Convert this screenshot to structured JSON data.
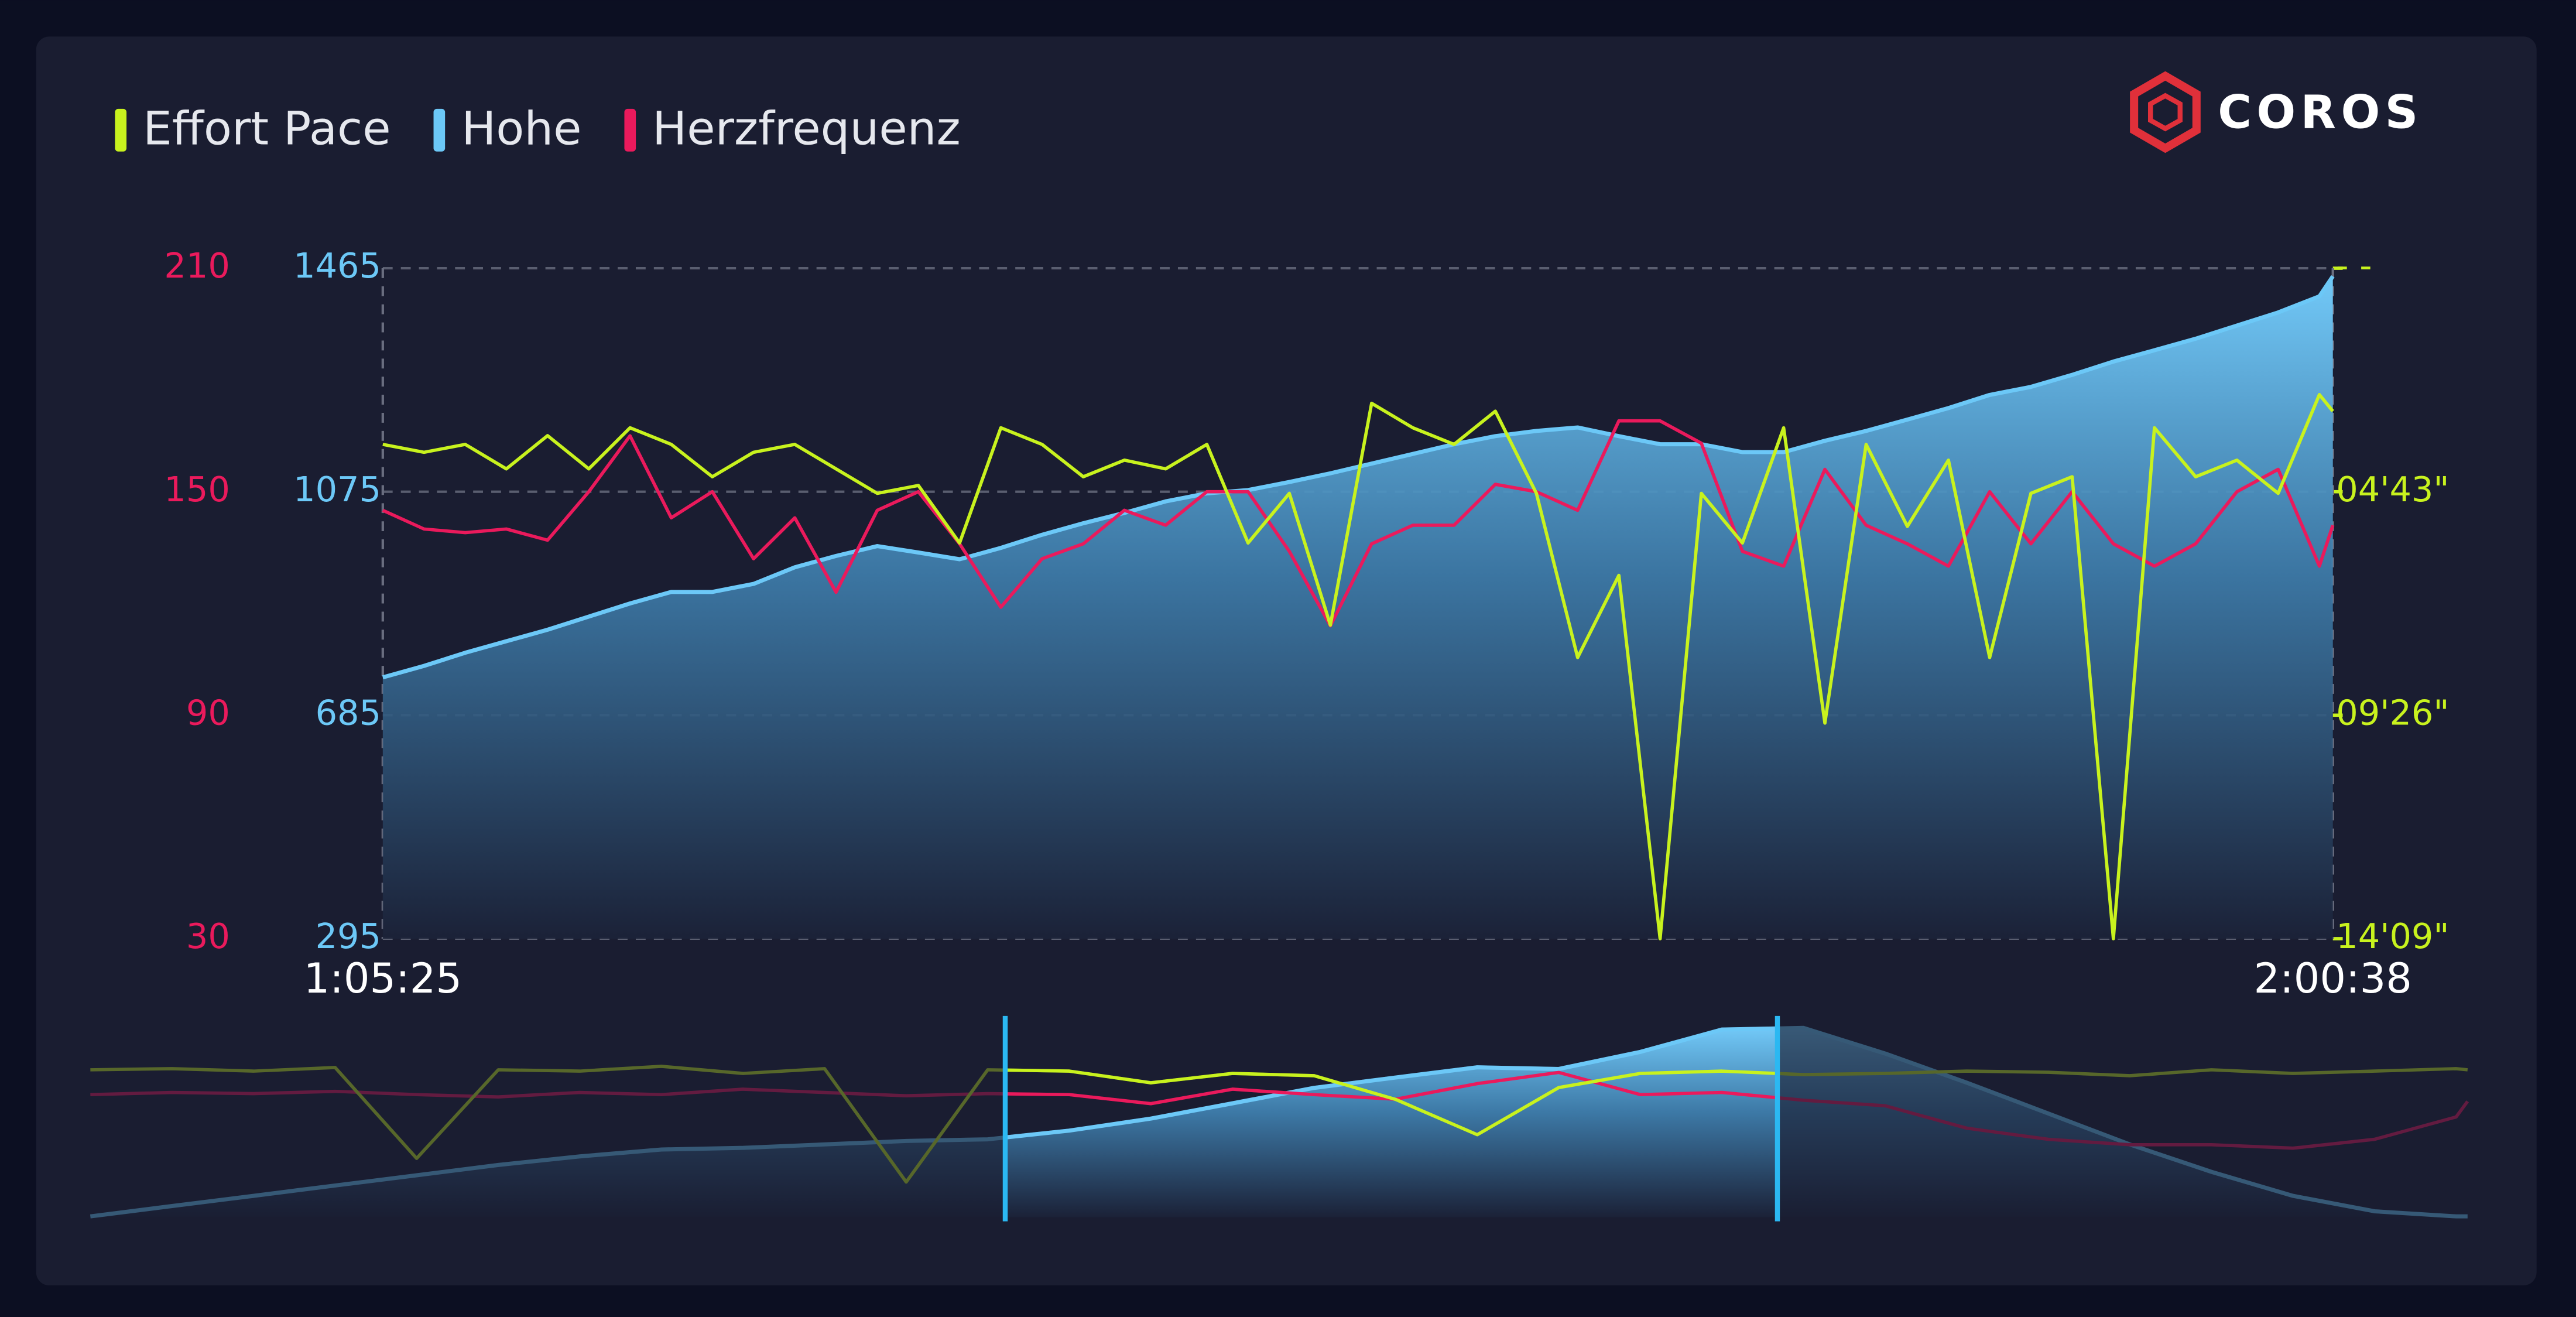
{
  "chart_data": [
    {
      "type": "line",
      "brand": "COROS",
      "x": [
        3925,
        3995,
        4065,
        4135,
        4205,
        4275,
        4345,
        4415,
        4485,
        4555,
        4625,
        4695,
        4765,
        4835,
        4905,
        4975,
        5045,
        5115,
        5185,
        5255,
        5325,
        5395,
        5465,
        5535,
        5605,
        5675,
        5745,
        5815,
        5885,
        5955,
        6025,
        6095,
        6165,
        6235,
        6305,
        6375,
        6445,
        6515,
        6585,
        6655,
        6725,
        6795,
        6865,
        6935,
        7005,
        7075,
        7145,
        7215,
        7238
      ],
      "xlim": [
        3925,
        7238
      ],
      "xticks": [
        {
          "value": 3925,
          "label": "1:05:25"
        },
        {
          "value": 7238,
          "label": "2:00:38"
        }
      ],
      "ylim": [
        295,
        1465
      ],
      "yticks": [
        295,
        685,
        1075,
        1465
      ],
      "y2lim": [
        849,
        0
      ],
      "y2ticks": [
        {
          "value": 0,
          "label": "- -"
        },
        {
          "value": 283,
          "label": "04'43\""
        },
        {
          "value": 566,
          "label": "09'26\""
        },
        {
          "value": 849,
          "label": "14'09\""
        }
      ],
      "y3lim": [
        30,
        210
      ],
      "y3ticks": [
        30,
        90,
        150,
        210
      ],
      "grid": true,
      "series": [
        {
          "name": "Effort Pace",
          "color": "#c8f21e",
          "axis": "y2",
          "values": [
            223,
            233,
            223,
            254,
            212,
            254,
            202,
            223,
            264,
            233,
            223,
            254,
            285,
            275,
            348,
            202,
            223,
            264,
            243,
            254,
            223,
            348,
            285,
            452,
            171,
            202,
            223,
            181,
            285,
            493,
            389,
            849,
            285,
            348,
            202,
            576,
            223,
            327,
            243,
            493,
            285,
            264,
            849,
            202,
            264,
            243,
            285,
            160,
            181
          ]
        },
        {
          "name": "Hohe",
          "color": "#6cc8f7",
          "area": true,
          "values": [
            751,
            771,
            794,
            814,
            834,
            857,
            880,
            900,
            900,
            914,
            943,
            963,
            980,
            969,
            957,
            977,
            1000,
            1020,
            1038,
            1058,
            1072,
            1078,
            1092,
            1107,
            1124,
            1141,
            1158,
            1172,
            1181,
            1187,
            1172,
            1158,
            1158,
            1144,
            1144,
            1164,
            1181,
            1201,
            1221,
            1244,
            1258,
            1279,
            1302,
            1322,
            1342,
            1365,
            1388,
            1416,
            1451
          ]
        },
        {
          "name": "Herzfrequenz",
          "color": "#ea1a5c",
          "axis": "y3",
          "values": [
            145,
            140,
            139,
            140,
            137,
            150,
            165,
            143,
            150,
            132,
            143,
            123,
            145,
            150,
            136,
            119,
            132,
            136,
            145,
            141,
            150,
            150,
            134,
            114,
            136,
            141,
            141,
            152,
            150,
            145,
            169,
            169,
            163,
            134,
            130,
            156,
            141,
            136,
            130,
            150,
            136,
            150,
            136,
            130,
            136,
            150,
            156,
            130,
            141
          ]
        }
      ]
    },
    {
      "type": "line",
      "x": [
        0,
        350,
        700,
        1050,
        1400,
        1750,
        2100,
        2450,
        2800,
        3150,
        3500,
        3850,
        4200,
        4550,
        4900,
        5250,
        5600,
        5950,
        6300,
        6650,
        7000,
        7350,
        7700,
        8050,
        8400,
        8750,
        9100,
        9450,
        9800,
        10150,
        10199
      ],
      "xlim": [
        0,
        10199
      ],
      "series": [
        {
          "color": "#c8f21e",
          "axis": "y2",
          "values": [
            225,
            220,
            230,
            215,
            600,
            225,
            230,
            210,
            240,
            220,
            700,
            225,
            230,
            280,
            240,
            250,
            350,
            500,
            300,
            240,
            230,
            245,
            240,
            230,
            235,
            250,
            225,
            240,
            230,
            220,
            225
          ]
        },
        {
          "color": "#6cc8f7",
          "area": true,
          "values": [
            300,
            360,
            420,
            480,
            540,
            600,
            650,
            690,
            700,
            720,
            740,
            750,
            800,
            870,
            960,
            1050,
            1110,
            1170,
            1160,
            1260,
            1390,
            1400,
            1250,
            1080,
            900,
            720,
            560,
            420,
            330,
            300,
            300
          ]
        },
        {
          "color": "#ea1a5c",
          "axis": "y3",
          "values": [
            140,
            142,
            141,
            143,
            140,
            138,
            142,
            140,
            145,
            142,
            139,
            141,
            140,
            132,
            145,
            140,
            136,
            150,
            160,
            140,
            142,
            135,
            130,
            110,
            100,
            95,
            95,
            92,
            100,
            120,
            134
          ]
        }
      ]
    }
  ]
}
